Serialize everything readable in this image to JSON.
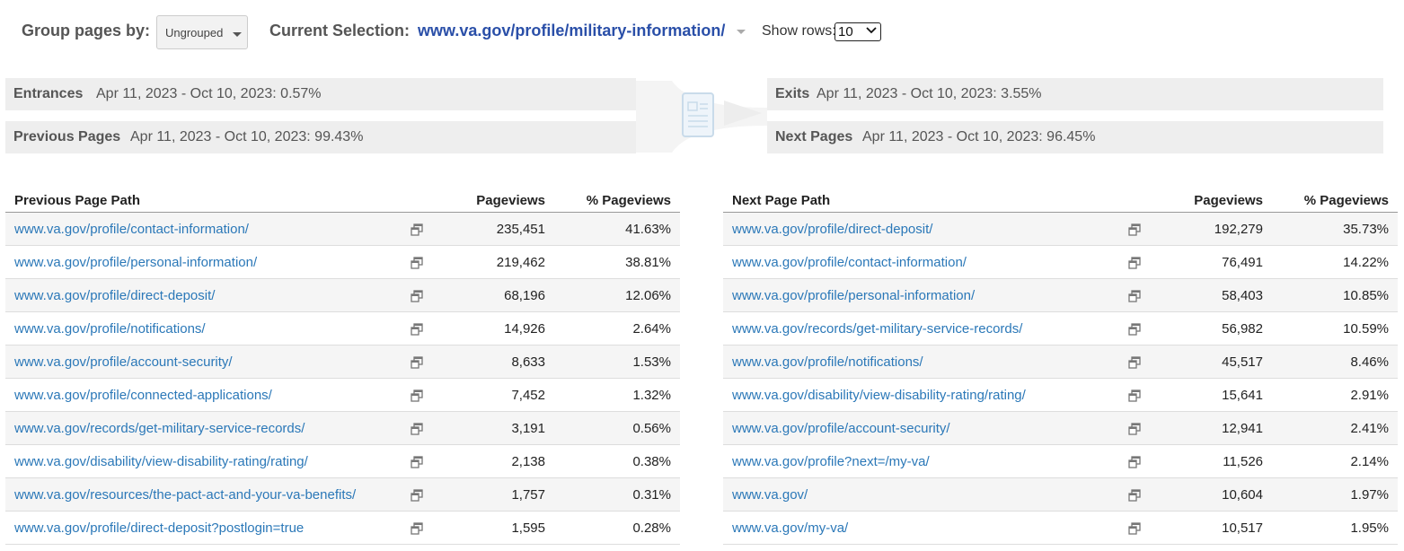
{
  "header": {
    "group_label": "Group pages by:",
    "group_value": "Ungrouped",
    "selection_label": "Current Selection:",
    "selection_value": "www.va.gov/profile/military-information/",
    "rows_label": "Show rows:",
    "rows_value": "10"
  },
  "summary": {
    "entrances": {
      "label": "Entrances",
      "value": "Apr 11, 2023 - Oct 10, 2023: 0.57%"
    },
    "previous": {
      "label": "Previous Pages",
      "value": "Apr 11, 2023 - Oct 10, 2023: 99.43%"
    },
    "exits": {
      "label": "Exits",
      "value": "Apr 11, 2023 - Oct 10, 2023: 3.55%"
    },
    "next": {
      "label": "Next Pages",
      "value": "Apr 11, 2023 - Oct 10, 2023: 96.45%"
    }
  },
  "previous_table": {
    "columns": [
      "Previous Page Path",
      "Pageviews",
      "% Pageviews"
    ],
    "rows": [
      {
        "path": "www.va.gov/profile/contact-information/",
        "pageviews": "235,451",
        "pct": "41.63%"
      },
      {
        "path": "www.va.gov/profile/personal-information/",
        "pageviews": "219,462",
        "pct": "38.81%"
      },
      {
        "path": "www.va.gov/profile/direct-deposit/",
        "pageviews": "68,196",
        "pct": "12.06%"
      },
      {
        "path": "www.va.gov/profile/notifications/",
        "pageviews": "14,926",
        "pct": "2.64%"
      },
      {
        "path": "www.va.gov/profile/account-security/",
        "pageviews": "8,633",
        "pct": "1.53%"
      },
      {
        "path": "www.va.gov/profile/connected-applications/",
        "pageviews": "7,452",
        "pct": "1.32%"
      },
      {
        "path": "www.va.gov/records/get-military-service-records/",
        "pageviews": "3,191",
        "pct": "0.56%"
      },
      {
        "path": "www.va.gov/disability/view-disability-rating/rating/",
        "pageviews": "2,138",
        "pct": "0.38%"
      },
      {
        "path": "www.va.gov/resources/the-pact-act-and-your-va-benefits/",
        "pageviews": "1,757",
        "pct": "0.31%"
      },
      {
        "path": "www.va.gov/profile/direct-deposit?postlogin=true",
        "pageviews": "1,595",
        "pct": "0.28%"
      }
    ]
  },
  "next_table": {
    "columns": [
      "Next Page Path",
      "Pageviews",
      "% Pageviews"
    ],
    "rows": [
      {
        "path": "www.va.gov/profile/direct-deposit/",
        "pageviews": "192,279",
        "pct": "35.73%"
      },
      {
        "path": "www.va.gov/profile/contact-information/",
        "pageviews": "76,491",
        "pct": "14.22%"
      },
      {
        "path": "www.va.gov/profile/personal-information/",
        "pageviews": "58,403",
        "pct": "10.85%"
      },
      {
        "path": "www.va.gov/records/get-military-service-records/",
        "pageviews": "56,982",
        "pct": "10.59%"
      },
      {
        "path": "www.va.gov/profile/notifications/",
        "pageviews": "45,517",
        "pct": "8.46%"
      },
      {
        "path": "www.va.gov/disability/view-disability-rating/rating/",
        "pageviews": "15,641",
        "pct": "2.91%"
      },
      {
        "path": "www.va.gov/profile/account-security/",
        "pageviews": "12,941",
        "pct": "2.41%"
      },
      {
        "path": "www.va.gov/profile?next=/my-va/",
        "pageviews": "11,526",
        "pct": "2.14%"
      },
      {
        "path": "www.va.gov/",
        "pageviews": "10,604",
        "pct": "1.97%"
      },
      {
        "path": "www.va.gov/my-va/",
        "pageviews": "10,517",
        "pct": "1.95%"
      }
    ]
  },
  "icons": {
    "row_action": "open-in-new-window-icon",
    "flow": "page-document-icon"
  },
  "colors": {
    "link": "#2b78b8",
    "selection": "#2a4fa8",
    "bar_bg": "#eeeeee"
  }
}
